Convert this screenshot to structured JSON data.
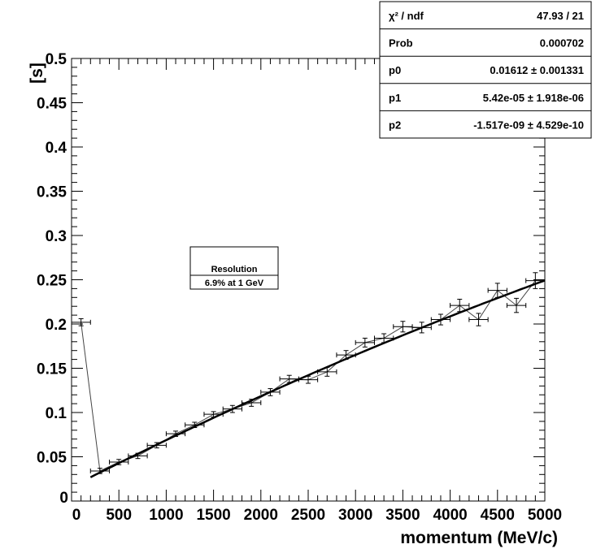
{
  "chart_data": {
    "type": "line",
    "xlabel": "momentum (MeV/c)",
    "ylabel": "[s]",
    "xlim": [
      0,
      5000
    ],
    "ylim": [
      0,
      0.5
    ],
    "x_ticks": [
      0,
      500,
      1000,
      1500,
      2000,
      2500,
      3000,
      3500,
      4000,
      4500,
      5000
    ],
    "x_tick_labels": [
      "0",
      "500",
      "1000",
      "1500",
      "2000",
      "2500",
      "3000",
      "3500",
      "4000",
      "4500",
      "5000"
    ],
    "y_ticks": [
      0,
      0.05,
      0.1,
      0.15,
      0.2,
      0.25,
      0.3,
      0.35,
      0.4,
      0.45,
      0.5
    ],
    "y_tick_labels": [
      "0",
      "0.05",
      "0.1",
      "0.15",
      "0.2",
      "0.25",
      "0.3",
      "0.35",
      "0.4",
      "0.45",
      "0.5"
    ],
    "grid": false,
    "series": [
      {
        "x": [
          100,
          300,
          500,
          700,
          900,
          1100,
          1300,
          1500,
          1700,
          1900,
          2100,
          2300,
          2500,
          2700,
          2900,
          3100,
          3300,
          3500,
          3700,
          3900,
          4100,
          4300,
          4500,
          4700,
          4900
        ],
        "y": [
          0.202,
          0.034,
          0.044,
          0.051,
          0.063,
          0.076,
          0.086,
          0.098,
          0.104,
          0.111,
          0.123,
          0.138,
          0.137,
          0.146,
          0.165,
          0.179,
          0.184,
          0.197,
          0.196,
          0.205,
          0.221,
          0.205,
          0.238,
          0.221,
          0.249
        ],
        "x_error": 100,
        "y_error": [
          0.004,
          0.003,
          0.003,
          0.003,
          0.003,
          0.003,
          0.003,
          0.003,
          0.004,
          0.004,
          0.004,
          0.004,
          0.004,
          0.005,
          0.005,
          0.005,
          0.005,
          0.006,
          0.006,
          0.006,
          0.007,
          0.007,
          0.008,
          0.008,
          0.009
        ]
      }
    ],
    "fit": {
      "function": "p0 + p1*x + p2*x^2",
      "p0": 0.01612,
      "p1": 5.42e-05,
      "p2": -1.517e-09,
      "x_range": [
        200,
        5000
      ]
    },
    "stats_box": [
      {
        "label": "χ² / ndf",
        "value": "47.93 / 21"
      },
      {
        "label": "Prob",
        "value": "0.000702"
      },
      {
        "label": "p0",
        "value": "0.01612 ± 0.001331"
      },
      {
        "label": "p1",
        "value": "5.42e-05 ± 1.918e-06"
      },
      {
        "label": "p2",
        "value": "-1.517e-09 ± 4.529e-10"
      }
    ],
    "legend": {
      "title": "Resolution",
      "entry": "6.9% at 1 GeV"
    },
    "colors": {
      "data_line": "#444444",
      "fit_line": "#000000",
      "frame": "#000000"
    }
  }
}
